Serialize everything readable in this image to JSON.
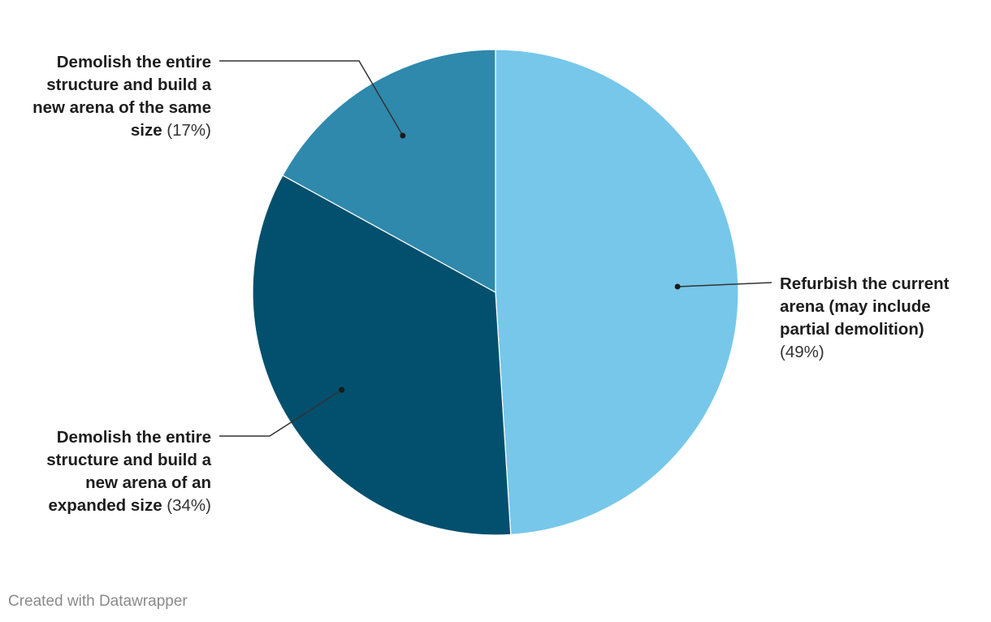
{
  "chart_data": {
    "type": "pie",
    "title": "",
    "slices": [
      {
        "name": "Refurbish the current arena (may include partial demolition)",
        "label_lines": [
          "Refurbish the current",
          "arena (may include",
          "partial demolition)"
        ],
        "value": 49,
        "value_label": "(49%)",
        "color": "#76c7ea"
      },
      {
        "name": "Demolish the entire structure and build a new arena of an expanded size",
        "label_lines": [
          "Demolish the entire",
          "structure and build a",
          "new arena of an",
          "expanded size"
        ],
        "value": 34,
        "value_label": "(34%)",
        "color": "#02506d"
      },
      {
        "name": "Demolish the entire structure and build a new arena of the same size",
        "label_lines": [
          "Demolish the entire",
          "structure and build a",
          "new arena of the same",
          "size"
        ],
        "value": 17,
        "value_label": "(17%)",
        "color": "#2f89ac"
      }
    ]
  },
  "credit": "Created with Datawrapper"
}
